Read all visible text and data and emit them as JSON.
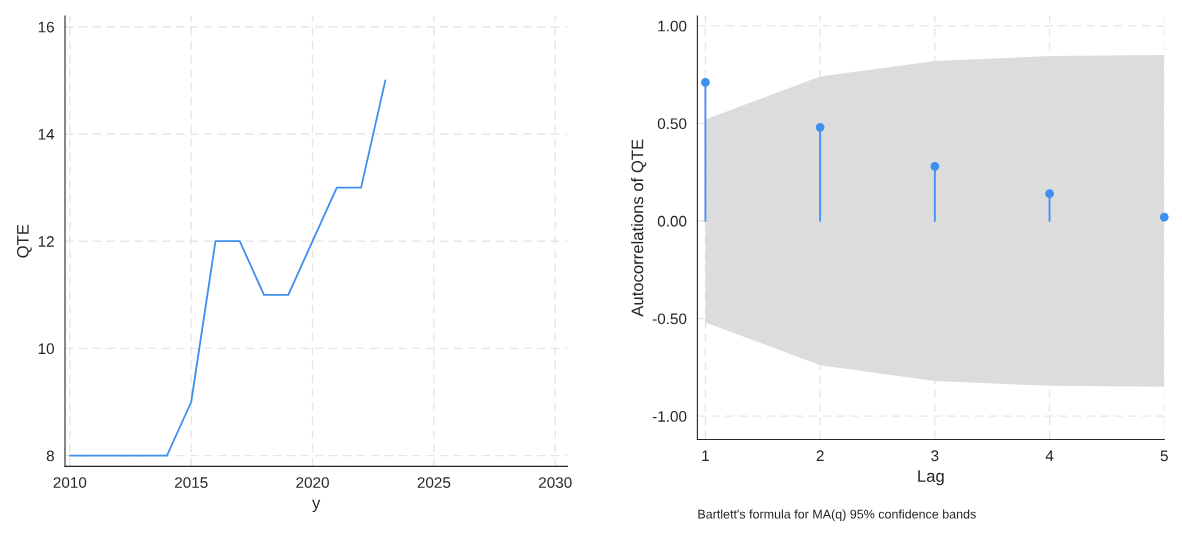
{
  "chart_data": [
    {
      "type": "line",
      "xlabel": "y",
      "ylabel": "QTE",
      "x": [
        2010,
        2011,
        2012,
        2013,
        2014,
        2015,
        2016,
        2017,
        2018,
        2019,
        2020,
        2021,
        2022,
        2023
      ],
      "series": [
        {
          "color": "#3d8ff0",
          "values": [
            8,
            8,
            8,
            8,
            8,
            9,
            12,
            12,
            11,
            11,
            12,
            13,
            13,
            15
          ]
        }
      ],
      "xlim": [
        2009.8,
        2030.5
      ],
      "xticks": [
        2010,
        2015,
        2020,
        2025,
        2030
      ],
      "ylim": [
        7.8,
        16.2
      ],
      "yticks": [
        8,
        10,
        12,
        14,
        16
      ],
      "grid": true,
      "marker": "none",
      "line_style": "solid"
    },
    {
      "type": "lollipop",
      "xlabel": "Lag",
      "ylabel": "Autocorrelations of QTE",
      "x": [
        1,
        2,
        3,
        4,
        5
      ],
      "series": [
        {
          "type": "area",
          "color": "#dcdcdc",
          "values": [
            null,
            null,
            null,
            null,
            null
          ],
          "lower": [
            -0.52,
            -0.74,
            -0.82,
            -0.845,
            -0.85
          ],
          "upper": [
            0.52,
            0.74,
            0.82,
            0.845,
            0.85
          ]
        },
        {
          "type": "lollipop",
          "color": "#3d8ff0",
          "values": [
            0.71,
            0.48,
            0.28,
            0.14,
            0.02
          ]
        }
      ],
      "xlim": [
        0.93,
        5.0
      ],
      "xticks": [
        1,
        2,
        3,
        4,
        5
      ],
      "ylim": [
        -1.12,
        1.05
      ],
      "yticks": [
        {
          "value": 1,
          "label": "1.00"
        },
        {
          "value": 0.5,
          "label": "0.50"
        },
        {
          "value": 0,
          "label": "0.00"
        },
        {
          "value": -0.5,
          "label": "-0.50"
        },
        {
          "value": -1,
          "label": "-1.00"
        }
      ],
      "grid": true,
      "marker": "circle",
      "annotations": [
        "Bartlett's formula for MA(q) 95% confidence bands"
      ]
    }
  ]
}
